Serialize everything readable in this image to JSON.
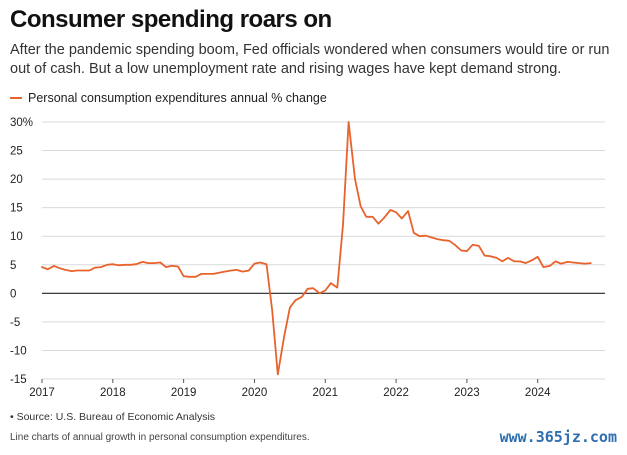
{
  "header": {
    "title": "Consumer spending roars on",
    "subtitle": "After the pandemic spending boom, Fed officials wondered when consumers would tire or run out of cash. But a low unemployment rate and rising wages have kept demand strong."
  },
  "footer": {
    "source": "• Source: U.S. Bureau of Economic Analysis",
    "caption": "Line charts of annual growth in personal consumption expenditures.",
    "watermark": "www.365jz.com"
  },
  "colors": {
    "line": "#e8622c",
    "grid": "#d9d9d9",
    "zero": "#222222"
  },
  "chart_data": {
    "type": "line",
    "title": "Consumer spending roars on",
    "legend": "top-left",
    "grid": true,
    "ylim": [
      -15,
      30
    ],
    "xlim": [
      2017.0,
      2024.95
    ],
    "yticks": [
      30,
      25,
      20,
      15,
      10,
      5,
      0,
      -5,
      -10,
      -15
    ],
    "ytick_labels": [
      "30%",
      "25",
      "20",
      "15",
      "10",
      "5",
      "0",
      "-5",
      "-10",
      "-15"
    ],
    "xticks": [
      2017,
      2018,
      2019,
      2020,
      2021,
      2022,
      2023,
      2024
    ],
    "xtick_labels": [
      "2017",
      "2018",
      "2019",
      "2020",
      "2021",
      "2022",
      "2023",
      "2024"
    ],
    "series": [
      {
        "name": "Personal consumption expenditures annual % change",
        "x": [
          2017.0,
          2017.08,
          2017.17,
          2017.25,
          2017.33,
          2017.42,
          2017.5,
          2017.58,
          2017.67,
          2017.75,
          2017.83,
          2017.92,
          2018.0,
          2018.08,
          2018.17,
          2018.25,
          2018.33,
          2018.42,
          2018.5,
          2018.58,
          2018.67,
          2018.75,
          2018.83,
          2018.92,
          2019.0,
          2019.08,
          2019.17,
          2019.25,
          2019.33,
          2019.42,
          2019.5,
          2019.58,
          2019.67,
          2019.75,
          2019.83,
          2019.92,
          2020.0,
          2020.08,
          2020.17,
          2020.25,
          2020.33,
          2020.42,
          2020.5,
          2020.58,
          2020.67,
          2020.75,
          2020.83,
          2020.92,
          2021.0,
          2021.08,
          2021.17,
          2021.25,
          2021.33,
          2021.42,
          2021.5,
          2021.58,
          2021.67,
          2021.75,
          2021.83,
          2021.92,
          2022.0,
          2022.08,
          2022.17,
          2022.25,
          2022.33,
          2022.42,
          2022.5,
          2022.58,
          2022.67,
          2022.75,
          2022.83,
          2022.92,
          2023.0,
          2023.08,
          2023.17,
          2023.25,
          2023.33,
          2023.42,
          2023.5,
          2023.58,
          2023.67,
          2023.75,
          2023.83,
          2023.92,
          2024.0,
          2024.08,
          2024.17,
          2024.25,
          2024.33,
          2024.42,
          2024.5,
          2024.58,
          2024.67,
          2024.75
        ],
        "y": [
          4.6,
          4.2,
          4.8,
          4.4,
          4.1,
          3.9,
          4.0,
          4.0,
          4.0,
          4.5,
          4.6,
          5.0,
          5.1,
          4.9,
          5.0,
          5.0,
          5.1,
          5.5,
          5.3,
          5.3,
          5.4,
          4.6,
          4.8,
          4.7,
          3.0,
          2.9,
          2.9,
          3.4,
          3.4,
          3.4,
          3.6,
          3.8,
          4.0,
          4.1,
          3.8,
          4.0,
          5.2,
          5.4,
          5.1,
          -3.0,
          -14.2,
          -7.5,
          -2.5,
          -1.2,
          -0.6,
          0.8,
          0.9,
          0.0,
          0.5,
          1.8,
          1.0,
          12.0,
          30.0,
          20.0,
          15.2,
          13.4,
          13.4,
          12.2,
          13.2,
          14.6,
          14.2,
          13.1,
          14.4,
          10.6,
          10.0,
          10.1,
          9.8,
          9.5,
          9.3,
          9.2,
          8.5,
          7.5,
          7.4,
          8.5,
          8.3,
          6.6,
          6.5,
          6.2,
          5.6,
          6.2,
          5.6,
          5.6,
          5.3,
          5.8,
          6.4,
          4.6,
          4.8,
          5.6,
          5.2,
          5.5,
          5.4,
          5.3,
          5.2,
          5.3
        ]
      }
    ]
  }
}
